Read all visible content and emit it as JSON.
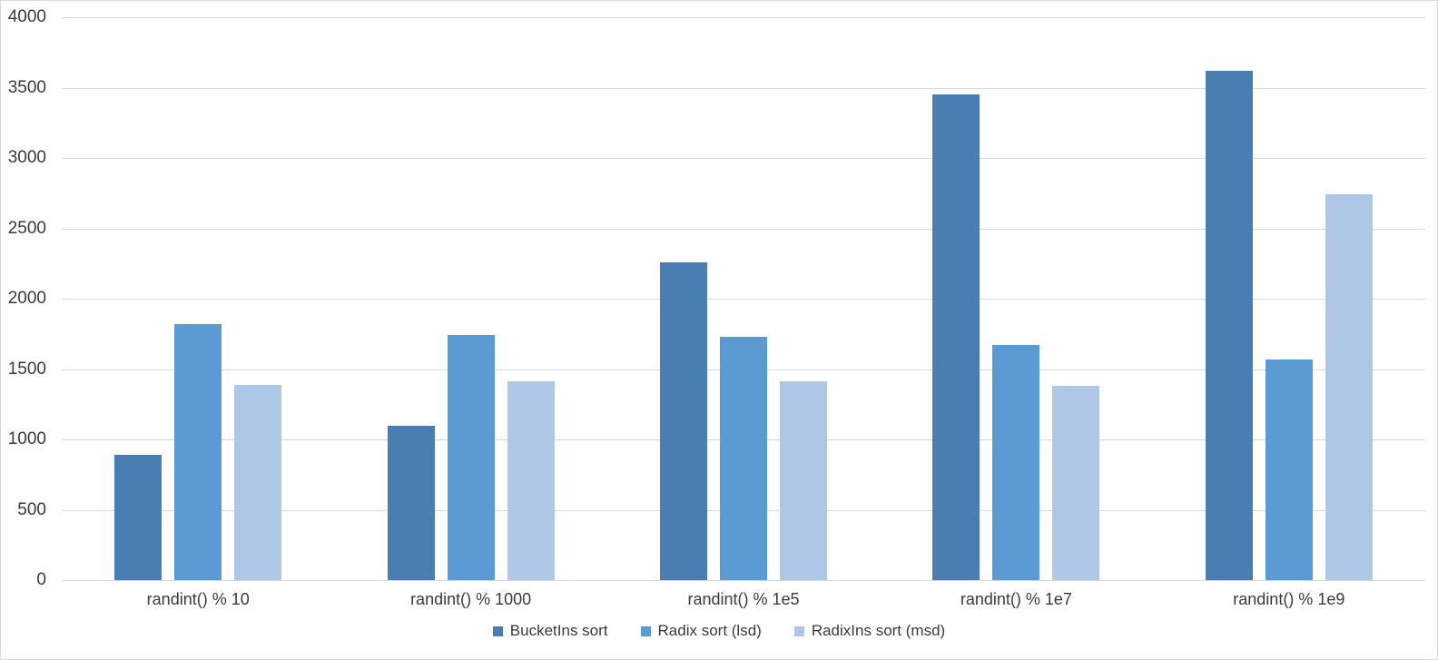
{
  "chart_data": {
    "type": "bar",
    "title": "",
    "categories": [
      "randint() % 10",
      "randint() % 1000",
      "randint() % 1e5",
      "randint() % 1e7",
      "randint() % 1e9"
    ],
    "series": [
      {
        "name": "BucketIns sort",
        "color": "#4A7EB2",
        "values": [
          890,
          1100,
          2260,
          3450,
          3620
        ]
      },
      {
        "name": "Radix sort (lsd)",
        "color": "#5C9AD3",
        "values": [
          1820,
          1740,
          1730,
          1670,
          1570
        ]
      },
      {
        "name": "RadixIns sort (msd)",
        "color": "#AFC7E6",
        "values": [
          1390,
          1410,
          1410,
          1380,
          2740
        ]
      }
    ],
    "y_axis": {
      "min": 0,
      "max": 4000,
      "step": 500,
      "tick_labels": [
        "0",
        "500",
        "1000",
        "1500",
        "2000",
        "2500",
        "3000",
        "3500",
        "4000"
      ]
    },
    "grid": true,
    "gridline_color": "#D9D9D9",
    "text_color": "#3A3A3A",
    "background_color": "#FFFFFF",
    "legend_position": "bottom"
  }
}
